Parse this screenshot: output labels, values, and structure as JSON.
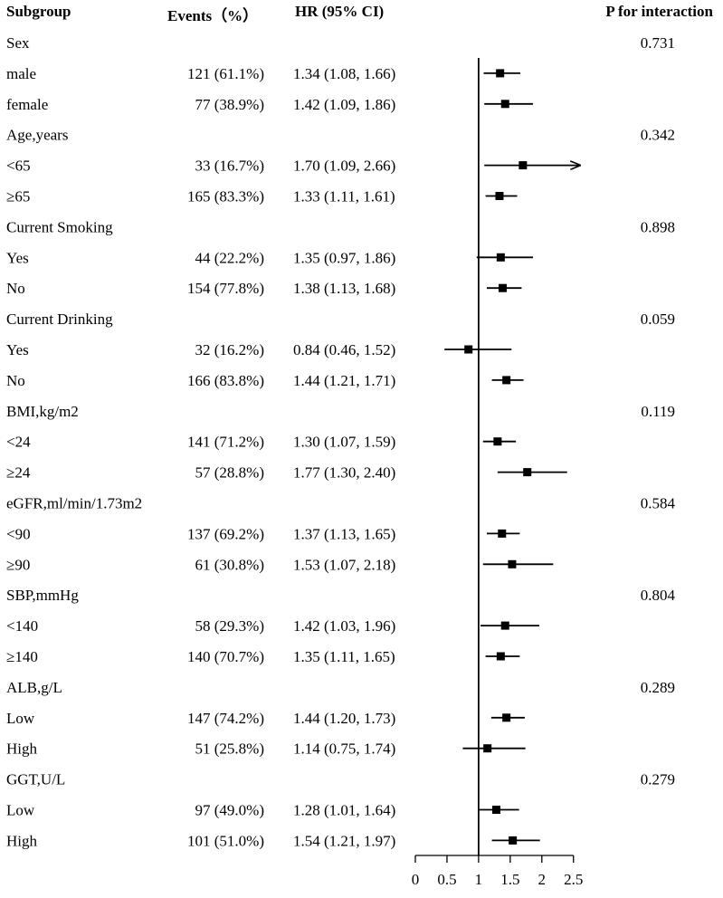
{
  "headers": {
    "subgroup": "Subgroup",
    "events": "Events（%）",
    "hr": "HR (95% CI)",
    "p_interaction": "P for interaction"
  },
  "chart_data": {
    "type": "forest",
    "x_label": "",
    "xlim": [
      0,
      2.5
    ],
    "x_ticks": [
      0,
      0.5,
      1,
      1.5,
      2,
      2.5
    ],
    "x_tick_labels": [
      "0",
      "0.5",
      "1",
      "1.5",
      "2",
      "2.5"
    ],
    "reference_line": 1,
    "rows": [
      {
        "type": "group",
        "label": "Sex",
        "p": "0.731"
      },
      {
        "type": "item",
        "label": "male",
        "events": "121 (61.1%)",
        "hr_text": "1.34 (1.08, 1.66)",
        "hr": 1.34,
        "lo": 1.08,
        "hi": 1.66
      },
      {
        "type": "item",
        "label": "female",
        "events": "77 (38.9%)",
        "hr_text": "1.42 (1.09, 1.86)",
        "hr": 1.42,
        "lo": 1.09,
        "hi": 1.86
      },
      {
        "type": "group",
        "label": "Age,years",
        "p": "0.342"
      },
      {
        "type": "item",
        "label": "<65",
        "events": "33 (16.7%)",
        "hr_text": "1.70 (1.09, 2.66)",
        "hr": 1.7,
        "lo": 1.09,
        "hi": 2.66
      },
      {
        "type": "item",
        "label": "≥65",
        "events": "165 (83.3%)",
        "hr_text": "1.33 (1.11, 1.61)",
        "hr": 1.33,
        "lo": 1.11,
        "hi": 1.61
      },
      {
        "type": "group",
        "label": "Current Smoking",
        "p": "0.898"
      },
      {
        "type": "item",
        "label": "Yes",
        "events": "44 (22.2%)",
        "hr_text": "1.35 (0.97, 1.86)",
        "hr": 1.35,
        "lo": 0.97,
        "hi": 1.86
      },
      {
        "type": "item",
        "label": "No",
        "events": "154 (77.8%)",
        "hr_text": "1.38 (1.13, 1.68)",
        "hr": 1.38,
        "lo": 1.13,
        "hi": 1.68
      },
      {
        "type": "group",
        "label": "Current Drinking",
        "p": "0.059"
      },
      {
        "type": "item",
        "label": "Yes",
        "events": "32 (16.2%)",
        "hr_text": "0.84 (0.46, 1.52)",
        "hr": 0.84,
        "lo": 0.46,
        "hi": 1.52
      },
      {
        "type": "item",
        "label": "No",
        "events": "166 (83.8%)",
        "hr_text": "1.44 (1.21, 1.71)",
        "hr": 1.44,
        "lo": 1.21,
        "hi": 1.71
      },
      {
        "type": "group",
        "label": "BMI,kg/m2",
        "p": "0.119"
      },
      {
        "type": "item",
        "label": "<24",
        "events": "141 (71.2%)",
        "hr_text": "1.30 (1.07, 1.59)",
        "hr": 1.3,
        "lo": 1.07,
        "hi": 1.59
      },
      {
        "type": "item",
        "label": "≥24",
        "events": "57 (28.8%)",
        "hr_text": "1.77 (1.30, 2.40)",
        "hr": 1.77,
        "lo": 1.3,
        "hi": 2.4
      },
      {
        "type": "group",
        "label": "eGFR,ml/min/1.73m2",
        "p": "0.584"
      },
      {
        "type": "item",
        "label": "<90",
        "events": "137 (69.2%)",
        "hr_text": "1.37 (1.13, 1.65)",
        "hr": 1.37,
        "lo": 1.13,
        "hi": 1.65
      },
      {
        "type": "item",
        "label": "≥90",
        "events": "61 (30.8%)",
        "hr_text": "1.53 (1.07, 2.18)",
        "hr": 1.53,
        "lo": 1.07,
        "hi": 2.18
      },
      {
        "type": "group",
        "label": "SBP,mmHg",
        "p": "0.804"
      },
      {
        "type": "item",
        "label": "<140",
        "events": "58 (29.3%)",
        "hr_text": "1.42 (1.03, 1.96)",
        "hr": 1.42,
        "lo": 1.03,
        "hi": 1.96
      },
      {
        "type": "item",
        "label": "≥140",
        "events": "140 (70.7%)",
        "hr_text": "1.35 (1.11, 1.65)",
        "hr": 1.35,
        "lo": 1.11,
        "hi": 1.65
      },
      {
        "type": "group",
        "label": "ALB,g/L",
        "p": "0.289"
      },
      {
        "type": "item",
        "label": "Low",
        "events": "147 (74.2%)",
        "hr_text": "1.44 (1.20, 1.73)",
        "hr": 1.44,
        "lo": 1.2,
        "hi": 1.73
      },
      {
        "type": "item",
        "label": "High",
        "events": "51 (25.8%)",
        "hr_text": "1.14 (0.75, 1.74)",
        "hr": 1.14,
        "lo": 0.75,
        "hi": 1.74
      },
      {
        "type": "group",
        "label": "GGT,U/L",
        "p": "0.279"
      },
      {
        "type": "item",
        "label": "Low",
        "events": "97 (49.0%)",
        "hr_text": "1.28 (1.01, 1.64)",
        "hr": 1.28,
        "lo": 1.01,
        "hi": 1.64
      },
      {
        "type": "item",
        "label": "High",
        "events": "101 (51.0%)",
        "hr_text": "1.54 (1.21, 1.97)",
        "hr": 1.54,
        "lo": 1.21,
        "hi": 1.97
      }
    ]
  }
}
